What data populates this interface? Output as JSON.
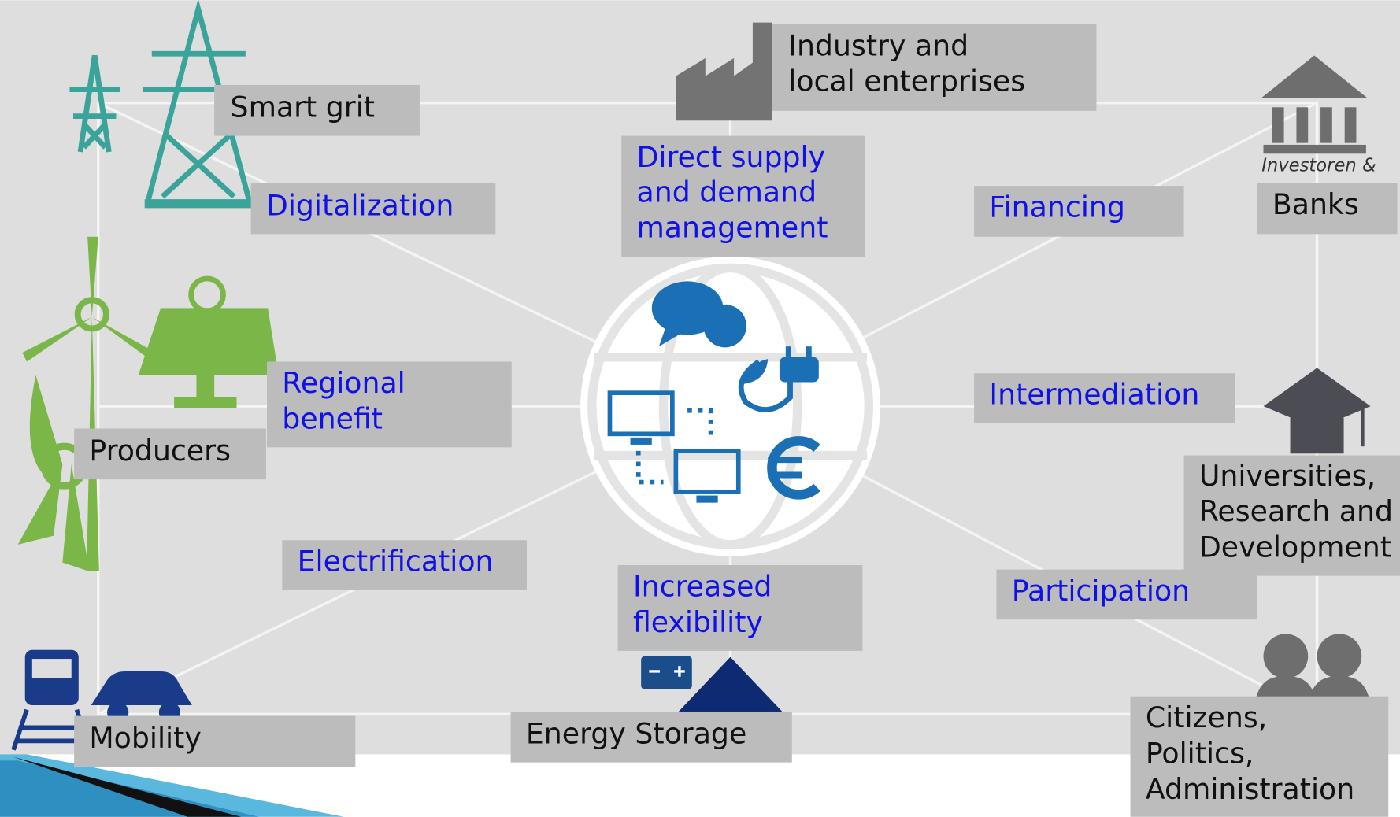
{
  "stakeholders": [
    {
      "lines": [
        "Smart grit"
      ]
    },
    {
      "lines": [
        "Industry and",
        "local enterprises"
      ]
    },
    {
      "lines": [
        "Banks"
      ]
    },
    {
      "lines": [
        "Producers"
      ]
    },
    {
      "lines": [
        "Universities,",
        "Research and",
        "Development"
      ]
    },
    {
      "lines": [
        "Mobility"
      ]
    },
    {
      "lines": [
        "Energy Storage"
      ]
    },
    {
      "lines": [
        "Citizens,",
        "Politics,",
        "Administration"
      ]
    }
  ],
  "functions": [
    {
      "lines": [
        "Digitalization"
      ]
    },
    {
      "lines": [
        "Direct supply",
        "and demand",
        "management"
      ]
    },
    {
      "lines": [
        "Financing"
      ]
    },
    {
      "lines": [
        "Regional",
        "benefit"
      ]
    },
    {
      "lines": [
        "Intermediation"
      ]
    },
    {
      "lines": [
        "Electrification"
      ]
    },
    {
      "lines": [
        "Increased",
        "flexibility"
      ]
    },
    {
      "lines": [
        "Participation"
      ]
    }
  ],
  "icon_caption": "Investoren &"
}
